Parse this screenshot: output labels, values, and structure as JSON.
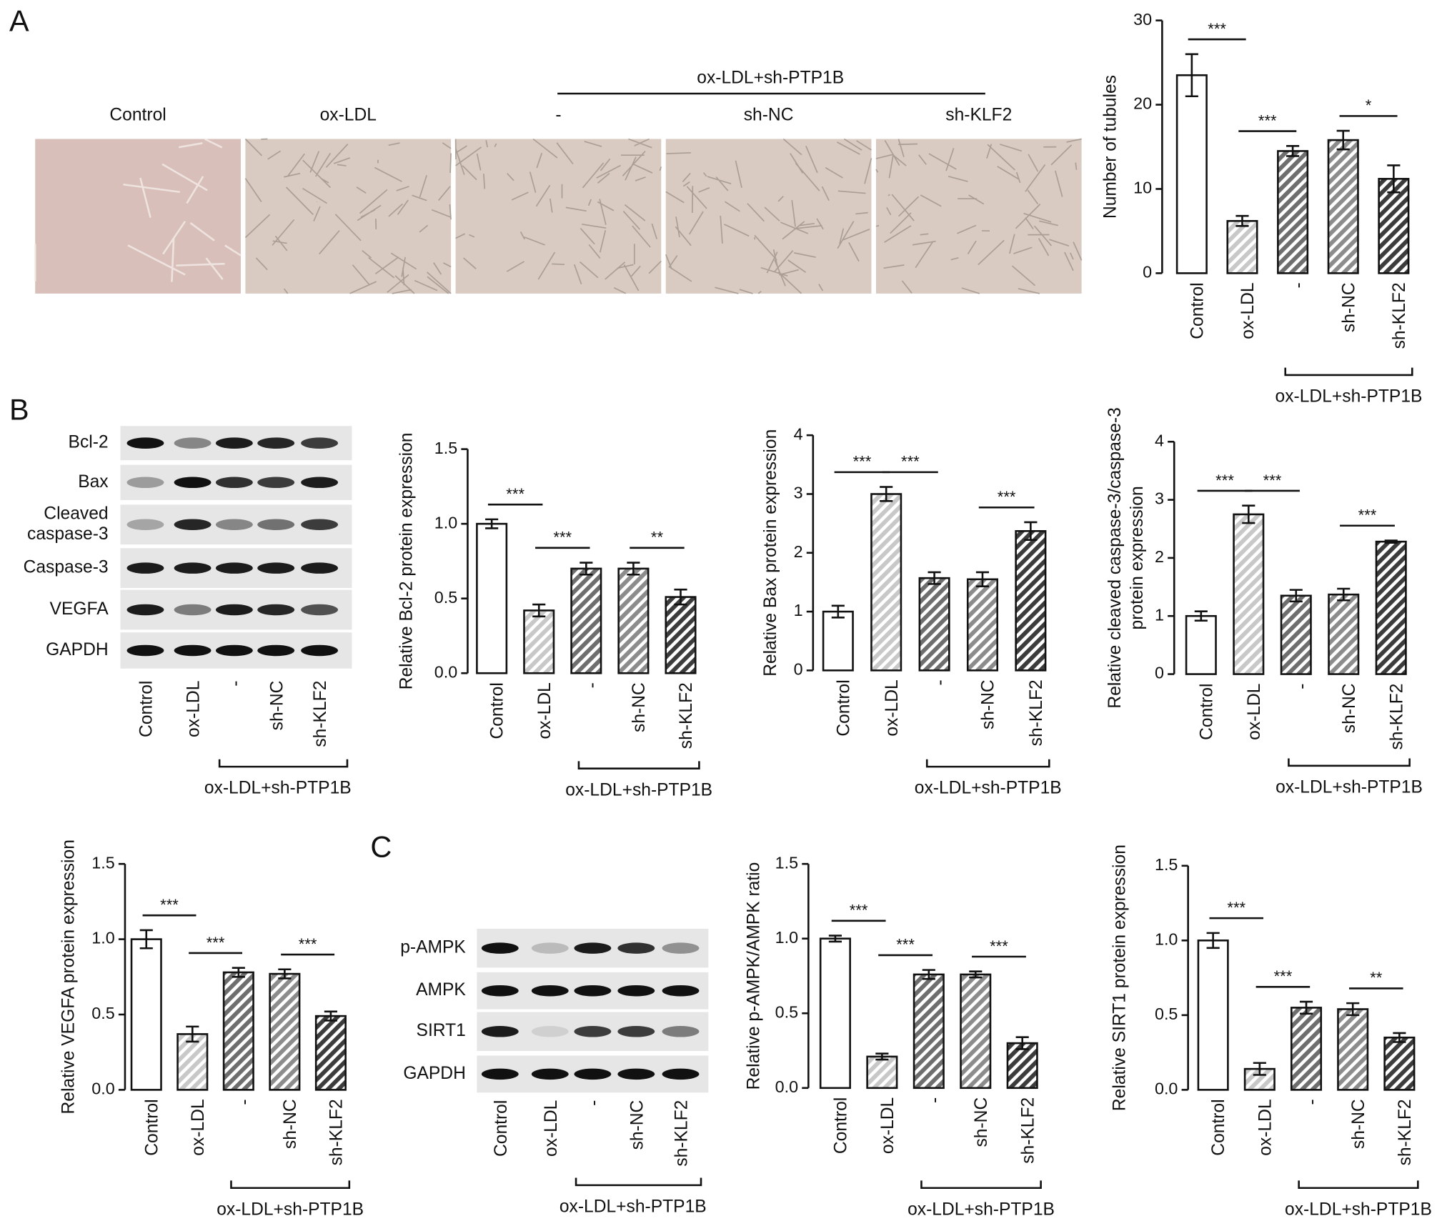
{
  "panel_labels": [
    "A",
    "B",
    "C"
  ],
  "micrographs": {
    "group_label": "ox-LDL+sh-PTP1B",
    "labels": [
      "Control",
      "ox-LDL",
      "-",
      "sh-NC",
      "sh-KLF2"
    ]
  },
  "blots": [
    {
      "rows": [
        "Bcl-2",
        "Bax",
        [
          "Cleaved",
          "caspase-3"
        ],
        "Caspase-3",
        "VEGFA",
        "GAPDH"
      ],
      "lanes": [
        "Control",
        "ox-LDL",
        "-",
        "sh-NC",
        "sh-KLF2"
      ],
      "group_label": "ox-LDL+sh-PTP1B"
    },
    {
      "rows": [
        "p-AMPK",
        "AMPK",
        "SIRT1",
        "GAPDH"
      ],
      "lanes": [
        "Control",
        "ox-LDL",
        "-",
        "sh-NC",
        "sh-KLF2"
      ],
      "group_label": "ox-LDL+sh-PTP1B"
    }
  ],
  "chart_data": [
    {
      "type": "bar",
      "ylabel": "Number of tubules",
      "categories": [
        "Control",
        "ox-LDL",
        "-",
        "sh-NC",
        "sh-KLF2"
      ],
      "group_label": "ox-LDL+sh-PTP1B",
      "values": [
        23.5,
        6.2,
        14.5,
        15.8,
        11.2
      ],
      "errors": [
        2.5,
        0.6,
        0.6,
        1.1,
        1.6
      ],
      "colors": [
        "#ffffff",
        "#c8c8c8",
        "#6e6e6e",
        "#8c8c8c",
        "#3c3c3c"
      ],
      "ylim": [
        0,
        30
      ],
      "yticks": [
        0,
        10,
        20,
        30
      ],
      "comparisons": [
        {
          "between": [
            0,
            1
          ],
          "label": "***"
        },
        {
          "between": [
            1,
            2
          ],
          "label": "***"
        },
        {
          "between": [
            3,
            4
          ],
          "label": "*"
        }
      ]
    },
    {
      "type": "bar",
      "ylabel": "Relative Bcl-2 protein expression",
      "categories": [
        "Control",
        "ox-LDL",
        "-",
        "sh-NC",
        "sh-KLF2"
      ],
      "group_label": "ox-LDL+sh-PTP1B",
      "values": [
        1.0,
        0.42,
        0.7,
        0.7,
        0.51
      ],
      "errors": [
        0.03,
        0.04,
        0.04,
        0.04,
        0.05
      ],
      "colors": [
        "#ffffff",
        "#c8c8c8",
        "#6e6e6e",
        "#8c8c8c",
        "#3c3c3c"
      ],
      "ylim": [
        0,
        1.5
      ],
      "yticks": [
        {
          "value": 0,
          "label": "0.0"
        },
        0.5,
        {
          "value": 1,
          "label": "1.0"
        },
        1.5
      ],
      "comparisons": [
        {
          "between": [
            0,
            1
          ],
          "label": "***"
        },
        {
          "between": [
            1,
            2
          ],
          "label": "***"
        },
        {
          "between": [
            3,
            4
          ],
          "label": "**"
        }
      ]
    },
    {
      "type": "bar",
      "ylabel": "Relative Bax protein expression",
      "categories": [
        "Control",
        "ox-LDL",
        "-",
        "sh-NC",
        "sh-KLF2"
      ],
      "group_label": "ox-LDL+sh-PTP1B",
      "values": [
        1.0,
        3.0,
        1.57,
        1.55,
        2.37
      ],
      "errors": [
        0.1,
        0.12,
        0.1,
        0.12,
        0.15
      ],
      "colors": [
        "#ffffff",
        "#c8c8c8",
        "#6e6e6e",
        "#8c8c8c",
        "#3c3c3c"
      ],
      "ylim": [
        0,
        4
      ],
      "yticks": [
        0,
        1,
        2,
        3,
        4
      ],
      "comparisons": [
        {
          "between": [
            0,
            1
          ],
          "label": "***"
        },
        {
          "between": [
            1,
            2
          ],
          "label": "***"
        },
        {
          "between": [
            3,
            4
          ],
          "label": "***"
        }
      ]
    },
    {
      "type": "bar",
      "ylabel": [
        "Relative cleaved caspase-3/caspase-3",
        "protein expression"
      ],
      "categories": [
        "Control",
        "ox-LDL",
        "-",
        "sh-NC",
        "sh-KLF2"
      ],
      "group_label": "ox-LDL+sh-PTP1B",
      "values": [
        1.0,
        2.75,
        1.35,
        1.37,
        2.28
      ],
      "errors": [
        0.08,
        0.15,
        0.1,
        0.1,
        0.02
      ],
      "colors": [
        "#ffffff",
        "#c8c8c8",
        "#6e6e6e",
        "#8c8c8c",
        "#3c3c3c"
      ],
      "ylim": [
        0,
        4
      ],
      "yticks": [
        0,
        1,
        2,
        3,
        4
      ],
      "comparisons": [
        {
          "between": [
            0,
            1
          ],
          "label": "***"
        },
        {
          "between": [
            1,
            2
          ],
          "label": "***"
        },
        {
          "between": [
            3,
            4
          ],
          "label": "***"
        }
      ]
    },
    {
      "type": "bar",
      "ylabel": "Relative VEGFA protein expression",
      "categories": [
        "Control",
        "ox-LDL",
        "-",
        "sh-NC",
        "sh-KLF2"
      ],
      "group_label": "ox-LDL+sh-PTP1B",
      "values": [
        1.0,
        0.37,
        0.78,
        0.77,
        0.49
      ],
      "errors": [
        0.06,
        0.05,
        0.03,
        0.03,
        0.03
      ],
      "colors": [
        "#ffffff",
        "#c8c8c8",
        "#6e6e6e",
        "#8c8c8c",
        "#3c3c3c"
      ],
      "ylim": [
        0,
        1.5
      ],
      "yticks": [
        {
          "value": 0,
          "label": "0.0"
        },
        0.5,
        {
          "value": 1,
          "label": "1.0"
        },
        1.5
      ],
      "comparisons": [
        {
          "between": [
            0,
            1
          ],
          "label": "***"
        },
        {
          "between": [
            1,
            2
          ],
          "label": "***"
        },
        {
          "between": [
            3,
            4
          ],
          "label": "***"
        }
      ]
    },
    {
      "type": "bar",
      "ylabel": "Relative p-AMPK/AMPK ratio",
      "categories": [
        "Control",
        "ox-LDL",
        "-",
        "sh-NC",
        "sh-KLF2"
      ],
      "group_label": "ox-LDL+sh-PTP1B",
      "values": [
        1.0,
        0.21,
        0.76,
        0.76,
        0.3
      ],
      "errors": [
        0.02,
        0.02,
        0.03,
        0.02,
        0.04
      ],
      "colors": [
        "#ffffff",
        "#c8c8c8",
        "#6e6e6e",
        "#8c8c8c",
        "#3c3c3c"
      ],
      "ylim": [
        0,
        1.5
      ],
      "yticks": [
        {
          "value": 0,
          "label": "0.0"
        },
        0.5,
        {
          "value": 1,
          "label": "1.0"
        },
        1.5
      ],
      "comparisons": [
        {
          "between": [
            0,
            1
          ],
          "label": "***"
        },
        {
          "between": [
            1,
            2
          ],
          "label": "***"
        },
        {
          "between": [
            3,
            4
          ],
          "label": "***"
        }
      ]
    },
    {
      "type": "bar",
      "ylabel": "Relative SIRT1 protein expression",
      "categories": [
        "Control",
        "ox-LDL",
        "-",
        "sh-NC",
        "sh-KLF2"
      ],
      "group_label": "ox-LDL+sh-PTP1B",
      "values": [
        1.0,
        0.14,
        0.55,
        0.54,
        0.35
      ],
      "errors": [
        0.05,
        0.04,
        0.04,
        0.04,
        0.03
      ],
      "colors": [
        "#ffffff",
        "#c8c8c8",
        "#6e6e6e",
        "#8c8c8c",
        "#3c3c3c"
      ],
      "ylim": [
        0,
        1.5
      ],
      "yticks": [
        {
          "value": 0,
          "label": "0.0"
        },
        0.5,
        {
          "value": 1,
          "label": "1.0"
        },
        1.5
      ],
      "comparisons": [
        {
          "between": [
            0,
            1
          ],
          "label": "***"
        },
        {
          "between": [
            1,
            2
          ],
          "label": "***"
        },
        {
          "between": [
            3,
            4
          ],
          "label": "**"
        }
      ]
    }
  ]
}
